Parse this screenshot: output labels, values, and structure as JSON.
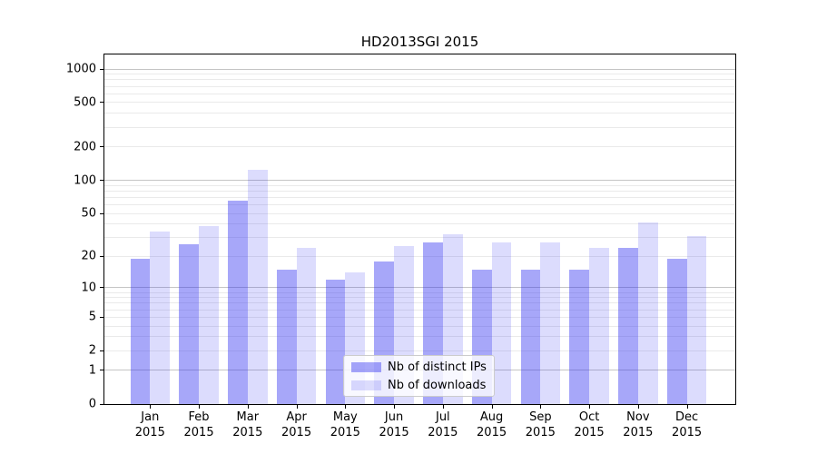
{
  "chart_data": {
    "type": "bar",
    "title": "HD2013SGI 2015",
    "categories": [
      "Jan 2015",
      "Feb 2015",
      "Mar 2015",
      "Apr 2015",
      "May 2015",
      "Jun 2015",
      "Jul 2015",
      "Aug 2015",
      "Sep 2015",
      "Oct 2015",
      "Nov 2015",
      "Dec 2015"
    ],
    "series": [
      {
        "name": "Nb of distinct IPs",
        "values": [
          19,
          26,
          65,
          15,
          12,
          18,
          27,
          15,
          15,
          15,
          24,
          19
        ],
        "color": "rgba(45,45,240,0.42)",
        "color_hex": "#a8a8f4"
      },
      {
        "name": "Nb of downloads",
        "values": [
          34,
          38,
          125,
          24,
          14,
          25,
          32,
          27,
          27,
          24,
          41,
          31
        ],
        "color": "rgba(45,45,240,0.165)",
        "color_hex": "#dcdcfa"
      }
    ],
    "y_axis": {
      "scale": "log10(value+1)",
      "tick_values": [
        0,
        1,
        2,
        5,
        10,
        20,
        50,
        100,
        200,
        500,
        1000
      ],
      "major_gridlines": [
        1,
        10,
        100,
        1000
      ],
      "minor_gridlines": [
        2,
        3,
        4,
        5,
        6,
        7,
        8,
        9,
        20,
        30,
        40,
        50,
        60,
        70,
        80,
        90,
        200,
        300,
        400,
        500,
        600,
        700,
        800,
        900
      ],
      "ylim": [
        0,
        1350
      ],
      "grid": true
    },
    "x_axis": {
      "tick_label_lines": 2
    },
    "legend": {
      "location": "lower center",
      "entries": [
        "Nb of distinct IPs",
        "Nb of downloads"
      ]
    },
    "colors": {
      "background": "#ffffff",
      "spine": "#000000",
      "grid_major": "#c5c5c5",
      "grid_minor": "#eaeaea"
    }
  }
}
